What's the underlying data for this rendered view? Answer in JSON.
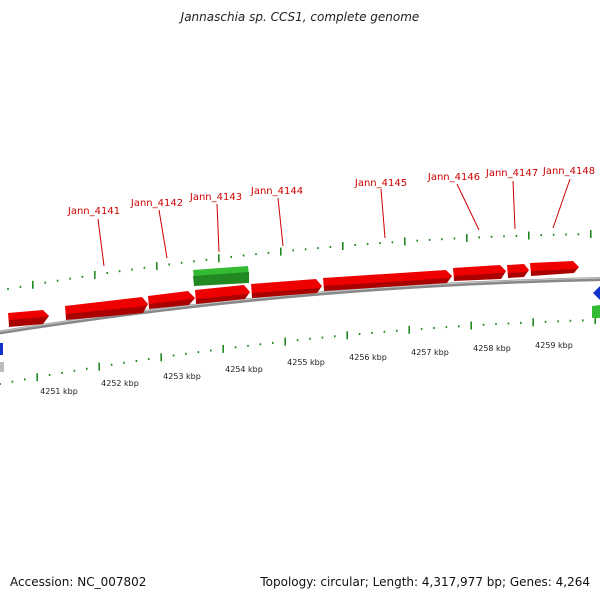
{
  "title": "Jannaschia sp. CCS1, complete genome",
  "footer": {
    "accession": "Accession: NC_007802",
    "summary": "Topology: circular; Length: 4,317,977 bp; Genes: 4,264"
  },
  "colors": {
    "forward_gene": "#ee0000",
    "reverse_gene": "#33bb33",
    "other_feature": "#1133cc",
    "label": "#cc0000",
    "tick": "#228822",
    "backbone": "#888888"
  },
  "scale_labels": [
    "4251 kbp",
    "4252 kbp",
    "4253 kbp",
    "4254 kbp",
    "4255 kbp",
    "4256 kbp",
    "4257 kbp",
    "4258 kbp",
    "4259 kbp"
  ],
  "gene_labels": [
    "Jann_4141",
    "Jann_4142",
    "Jann_4143",
    "Jann_4144",
    "Jann_4145",
    "Jann_4146",
    "Jann_4147",
    "Jann_4148"
  ]
}
